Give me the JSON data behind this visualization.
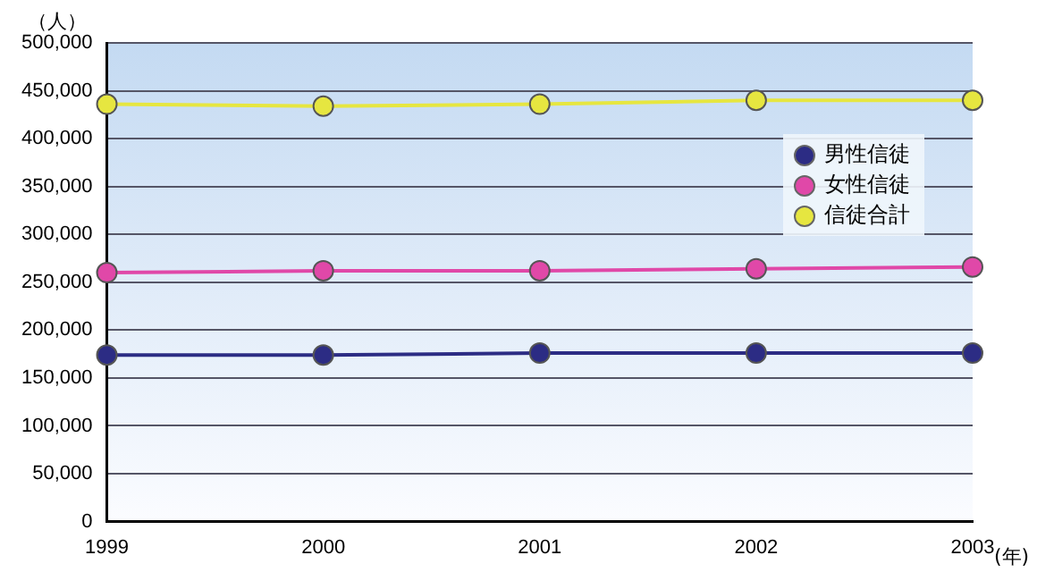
{
  "chart_data": {
    "type": "line",
    "xlabel": "(年)",
    "ylabel": "（人）",
    "categories": [
      "1999",
      "2000",
      "2001",
      "2002",
      "2003"
    ],
    "series": [
      {
        "name": "男性信徒",
        "color": "#2c2c84",
        "values": [
          174000,
          174000,
          176000,
          176000,
          176000
        ]
      },
      {
        "name": "女性信徒",
        "color": "#e048a8",
        "values": [
          260000,
          262000,
          262000,
          264000,
          266000
        ]
      },
      {
        "name": "信徒合計",
        "color": "#e6e640",
        "values": [
          436000,
          434000,
          436000,
          440000,
          440000
        ]
      }
    ],
    "ylim": [
      0,
      500000
    ],
    "yticks": [
      0,
      {
        "value": 50000,
        "label": "50,000"
      },
      {
        "value": 100000,
        "label": "100,000"
      },
      {
        "value": 150000,
        "label": "150,000"
      },
      {
        "value": 200000,
        "label": "200,000"
      },
      {
        "value": 250000,
        "label": "250,000"
      },
      {
        "value": 300000,
        "label": "300,000"
      },
      {
        "value": 350000,
        "label": "350,000"
      },
      {
        "value": 400000,
        "label": "400,000"
      },
      {
        "value": 450000,
        "label": "450,000"
      },
      {
        "value": 500000,
        "label": "500,000"
      }
    ],
    "grid": "y",
    "legend": "right",
    "marker": "circle",
    "line_style": "solid"
  }
}
